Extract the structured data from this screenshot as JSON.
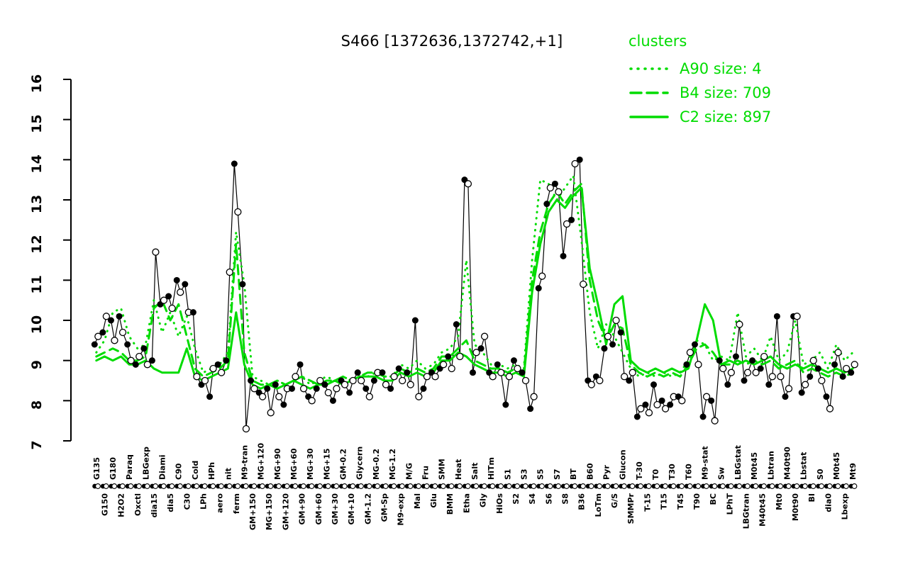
{
  "title": "S466 [1372636,1372742,+1]",
  "colors": {
    "cluster_green": "#00dc00",
    "point_black": "#000000",
    "background": "#ffffff"
  },
  "legend": {
    "title": "clusters",
    "entries": [
      {
        "label": "A90 size: 4",
        "cluster": "A90",
        "size": 4,
        "line_style": "dotted"
      },
      {
        "label": "B4 size: 709",
        "cluster": "B4",
        "size": 709,
        "line_style": "dashed"
      },
      {
        "label": "C2 size: 897",
        "cluster": "C2",
        "size": 897,
        "line_style": "solid"
      }
    ]
  },
  "chart_data": {
    "type": "line",
    "title": "S466 [1372636,1372742,+1]",
    "xlabel": "",
    "ylabel": "",
    "ylim": [
      7,
      16
    ],
    "yticks": [
      7,
      8,
      9,
      10,
      11,
      12,
      13,
      14,
      15,
      16
    ],
    "grid": false,
    "legend_position": "top-right",
    "x_axis_marker_row": "paired filled/open circles per condition",
    "categories": [
      "G135",
      "G150",
      "G180",
      "H2O2",
      "Paraq",
      "Oxctl",
      "LBGexp",
      "dia15",
      "Diami",
      "dia5",
      "C90",
      "C30",
      "Cold",
      "LPh",
      "HPh",
      "aero",
      "nit",
      "ferm",
      "M9-tran",
      "GM+150",
      "MG+120",
      "MG+150",
      "MG+90",
      "GM+120",
      "MG+60",
      "GM+90",
      "MG+30",
      "GM+60",
      "MG+15",
      "GM+30",
      "GM-0.2",
      "GM+10",
      "Glycern",
      "GM-1.2",
      "MG-0.2",
      "GM-Sp",
      "MG-1.2",
      "M9-exp",
      "M/G",
      "Mal",
      "Fru",
      "Glu",
      "SMM",
      "BMM",
      "Heat",
      "Etha",
      "Salt",
      "Gly",
      "HiTm",
      "HiOs",
      "S1",
      "S2",
      "S3",
      "S4",
      "S5",
      "S6",
      "S7",
      "S8",
      "BT",
      "B36",
      "B60",
      "LoTm",
      "Pyr",
      "G/S",
      "Glucon",
      "SMMPr",
      "T-30",
      "T-15",
      "T0",
      "T15",
      "T30",
      "T45",
      "T60",
      "T90",
      "M9-stat",
      "BC",
      "Sw",
      "LPhT",
      "LBGstat",
      "LBGtran",
      "M0t45",
      "M40t45",
      "Lbtran",
      "Mt0",
      "M40t90",
      "M0t90",
      "Lbstat",
      "BI",
      "S0",
      "dia0",
      "M0t45",
      "Lbexp",
      "Mt9"
    ],
    "probe_points": {
      "name": "S466 probe replicates",
      "marker_rep1": "filled-circle",
      "marker_rep2": "open-circle",
      "rep1": [
        9.4,
        9.7,
        10.0,
        10.1,
        9.4,
        8.9,
        9.3,
        9.0,
        10.4,
        10.6,
        11.0,
        10.9,
        10.2,
        8.4,
        8.1,
        8.9,
        9.0,
        13.9,
        10.9,
        8.5,
        8.2,
        8.3,
        8.4,
        7.9,
        8.3,
        8.9,
        8.1,
        8.3,
        8.4,
        8.0,
        8.5,
        8.2,
        8.7,
        8.3,
        8.5,
        8.7,
        8.3,
        8.8,
        8.7,
        10.0,
        8.3,
        8.7,
        8.8,
        9.1,
        9.9,
        13.5,
        8.7,
        9.3,
        8.7,
        8.9,
        7.9,
        9.0,
        8.7,
        7.8,
        10.8,
        12.9,
        13.4,
        11.6,
        12.5,
        14.0,
        8.5,
        8.6,
        9.3,
        9.4,
        9.7,
        8.5,
        7.6,
        7.9,
        8.4,
        8.0,
        7.9,
        8.1,
        8.9,
        9.4,
        7.6,
        8.0,
        9.0,
        8.4,
        9.1,
        8.5,
        9.0,
        8.8,
        8.4,
        10.1,
        8.1,
        10.1,
        8.2,
        8.6,
        8.8,
        8.1,
        8.9,
        8.6,
        8.7
      ],
      "rep2": [
        9.6,
        10.1,
        9.5,
        9.7,
        9.0,
        9.1,
        8.9,
        11.7,
        10.5,
        10.3,
        10.7,
        10.2,
        8.6,
        8.5,
        8.8,
        8.7,
        11.2,
        12.7,
        7.3,
        8.3,
        8.1,
        7.7,
        8.1,
        8.3,
        8.6,
        8.3,
        8.0,
        8.5,
        8.2,
        8.3,
        8.4,
        8.5,
        8.5,
        8.1,
        8.7,
        8.4,
        8.6,
        8.5,
        8.4,
        8.1,
        8.6,
        8.6,
        8.9,
        8.8,
        9.1,
        13.4,
        9.2,
        9.6,
        8.6,
        8.7,
        8.6,
        8.8,
        8.5,
        8.1,
        11.1,
        13.3,
        13.2,
        12.4,
        13.9,
        10.9,
        8.4,
        8.5,
        9.6,
        10.0,
        8.6,
        8.7,
        7.8,
        7.7,
        7.9,
        7.8,
        8.1,
        8.0,
        9.2,
        8.9,
        8.1,
        7.5,
        8.8,
        8.7,
        9.9,
        8.7,
        8.7,
        9.1,
        8.6,
        8.6,
        8.3,
        10.1,
        8.4,
        9.0,
        8.5,
        7.8,
        9.2,
        8.8,
        8.9
      ]
    },
    "cluster_series": [
      {
        "name": "A90",
        "size": 4,
        "style": "dotted",
        "values": [
          9.2,
          9.5,
          10.2,
          10.3,
          9.6,
          9.3,
          9.4,
          10.5,
          9.7,
          10.2,
          9.6,
          10.1,
          9.3,
          8.7,
          8.8,
          8.9,
          9.2,
          12.2,
          10.9,
          8.6,
          8.5,
          8.4,
          8.5,
          8.4,
          8.5,
          8.6,
          8.4,
          8.5,
          8.6,
          8.5,
          8.6,
          8.5,
          8.6,
          8.6,
          8.7,
          8.6,
          8.6,
          8.9,
          8.8,
          9.0,
          8.8,
          8.9,
          9.2,
          9.3,
          9.6,
          11.5,
          9.4,
          9.2,
          8.9,
          8.9,
          8.8,
          8.9,
          8.8,
          11.5,
          13.5,
          13.4,
          13.0,
          13.3,
          13.6,
          12.0,
          10.2,
          9.3,
          9.9,
          9.6,
          9.2,
          8.8,
          8.6,
          8.7,
          8.6,
          8.7,
          8.6,
          8.7,
          9.0,
          9.5,
          9.4,
          9.0,
          9.1,
          9.0,
          10.2,
          9.1,
          9.3,
          9.0,
          9.6,
          9.0,
          9.2,
          10.0,
          8.9,
          9.0,
          9.2,
          8.8,
          9.4,
          9.0,
          9.2
        ]
      },
      {
        "name": "B4",
        "size": 709,
        "style": "dashed",
        "values": [
          9.1,
          9.2,
          9.3,
          9.2,
          9.0,
          9.0,
          9.1,
          10.3,
          10.5,
          10.0,
          10.4,
          9.6,
          8.8,
          8.6,
          8.7,
          8.8,
          9.0,
          11.9,
          9.2,
          8.5,
          8.4,
          8.4,
          8.5,
          8.4,
          8.5,
          8.6,
          8.5,
          8.4,
          8.5,
          8.5,
          8.6,
          8.5,
          8.6,
          8.7,
          8.7,
          8.6,
          8.6,
          8.8,
          8.7,
          8.8,
          8.7,
          8.8,
          9.1,
          9.1,
          9.3,
          9.5,
          9.0,
          8.9,
          8.8,
          8.8,
          8.7,
          8.8,
          8.7,
          11.0,
          12.2,
          12.9,
          13.2,
          12.9,
          13.2,
          13.4,
          11.0,
          10.0,
          9.5,
          9.9,
          9.8,
          8.9,
          8.7,
          8.6,
          8.7,
          8.6,
          8.7,
          8.6,
          8.9,
          9.3,
          9.4,
          9.2,
          8.9,
          8.9,
          9.0,
          8.9,
          9.0,
          8.9,
          9.0,
          8.8,
          8.9,
          9.0,
          8.7,
          8.8,
          8.7,
          8.6,
          8.7,
          8.6,
          8.7
        ]
      },
      {
        "name": "C2",
        "size": 897,
        "style": "solid",
        "values": [
          9.0,
          9.1,
          9.0,
          9.1,
          8.9,
          8.9,
          9.0,
          8.8,
          8.7,
          8.7,
          8.7,
          9.3,
          8.6,
          8.5,
          8.6,
          8.7,
          8.8,
          10.2,
          8.9,
          8.4,
          8.3,
          8.4,
          8.3,
          8.4,
          8.5,
          8.4,
          8.3,
          8.4,
          8.4,
          8.5,
          8.4,
          8.5,
          8.6,
          8.6,
          8.6,
          8.5,
          8.5,
          8.7,
          8.6,
          8.7,
          8.6,
          8.7,
          9.0,
          9.0,
          9.2,
          9.1,
          8.9,
          8.8,
          8.7,
          8.7,
          8.6,
          8.7,
          8.6,
          10.7,
          11.9,
          12.7,
          13.0,
          12.8,
          13.1,
          13.3,
          11.3,
          10.4,
          9.4,
          10.4,
          10.6,
          9.0,
          8.8,
          8.7,
          8.8,
          8.7,
          8.8,
          8.7,
          8.8,
          9.5,
          10.4,
          10.0,
          8.9,
          9.0,
          8.9,
          9.0,
          8.9,
          9.0,
          9.1,
          8.9,
          8.8,
          8.9,
          8.8,
          8.9,
          8.8,
          8.7,
          8.8,
          8.7,
          8.8
        ]
      }
    ]
  }
}
